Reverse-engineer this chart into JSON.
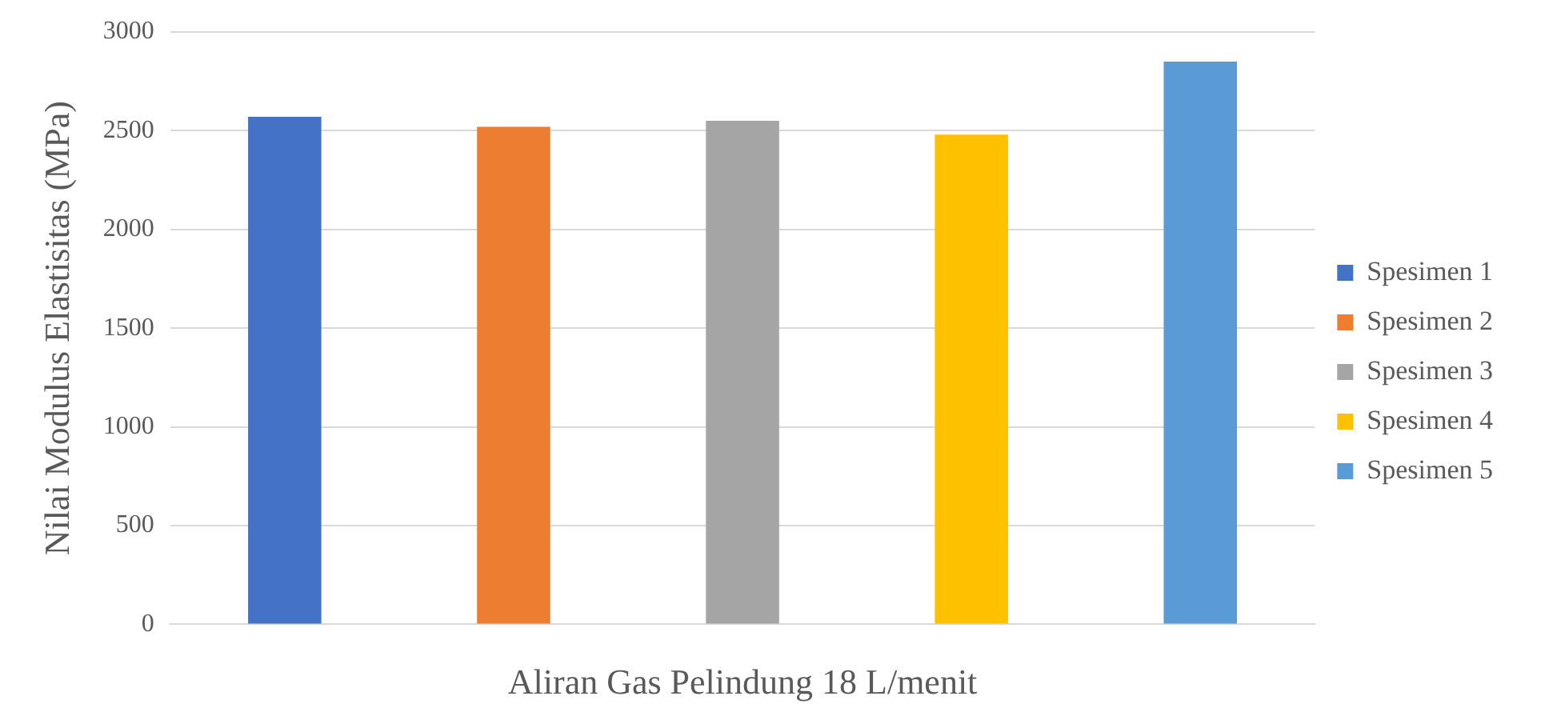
{
  "chart_data": {
    "type": "bar",
    "xlabel": "Aliran Gas Pelindung 18 L/menit",
    "ylabel": "Nilai Modulus Elastisitas (MPa)",
    "categories": [
      null
    ],
    "series": [
      {
        "name": "Spesimen 1",
        "color": "#4472c4",
        "values": [
          2570
        ]
      },
      {
        "name": "Spesimen 2",
        "color": "#ed7d31",
        "values": [
          2520
        ]
      },
      {
        "name": "Spesimen 3",
        "color": "#a5a5a5",
        "values": [
          2550
        ]
      },
      {
        "name": "Spesimen 4",
        "color": "#ffc000",
        "values": [
          2480
        ]
      },
      {
        "name": "Spesimen 5",
        "color": "#5b9bd5",
        "values": [
          2850
        ]
      }
    ],
    "ylim": [
      0,
      3000
    ],
    "yticks": [
      0,
      500,
      1000,
      1500,
      2000,
      2500,
      3000
    ],
    "grid": "y",
    "legend": "right"
  }
}
